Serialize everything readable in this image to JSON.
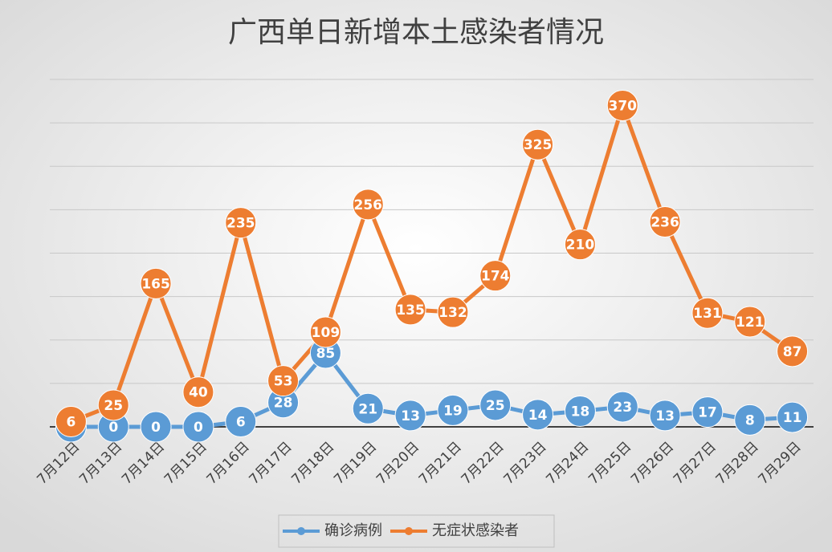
{
  "chart_data": {
    "type": "line",
    "title": "广西单日新增本土感染者情况",
    "categories": [
      "7月12日",
      "7月13日",
      "7月14日",
      "7月15日",
      "7月16日",
      "7月17日",
      "7月18日",
      "7月19日",
      "7月20日",
      "7月21日",
      "7月22日",
      "7月23日",
      "7月24日",
      "7月25日",
      "7月26日",
      "7月27日",
      "7月28日",
      "7月29日"
    ],
    "series": [
      {
        "name": "确诊病例",
        "color": "#5b9bd5",
        "values": [
          0,
          0,
          0,
          0,
          6,
          28,
          85,
          21,
          13,
          19,
          25,
          14,
          18,
          23,
          13,
          17,
          8,
          11
        ]
      },
      {
        "name": "无症状感染者",
        "color": "#ed7d31",
        "values": [
          6,
          25,
          165,
          40,
          235,
          53,
          109,
          256,
          135,
          132,
          174,
          325,
          210,
          370,
          236,
          131,
          121,
          87
        ]
      }
    ],
    "ylim": [
      0,
      400
    ],
    "yticks": [
      0,
      50,
      100,
      150,
      200,
      250,
      300,
      350,
      400
    ],
    "grid": true,
    "legend": "bottom"
  }
}
